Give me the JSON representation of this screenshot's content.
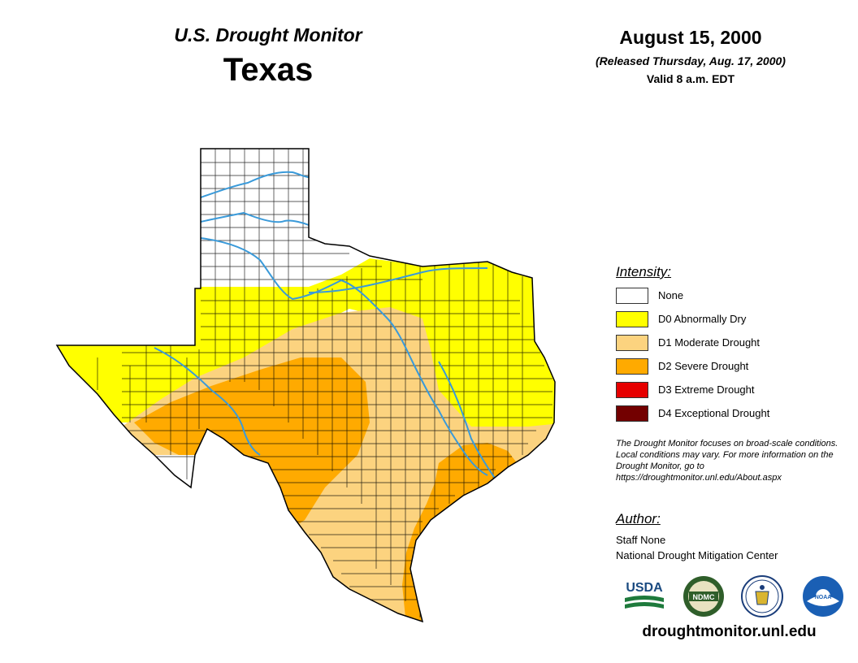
{
  "header": {
    "subtitle": "U.S. Drought Monitor",
    "region": "Texas",
    "date": "August 15, 2000",
    "released": "(Released Thursday, Aug. 17, 2000)",
    "valid": "Valid 8 a.m. EDT"
  },
  "legend": {
    "heading": "Intensity:",
    "items": [
      {
        "label": "None",
        "color": "#ffffff"
      },
      {
        "label": "D0 Abnormally Dry",
        "color": "#ffff00"
      },
      {
        "label": "D1 Moderate Drought",
        "color": "#fcd37f"
      },
      {
        "label": "D2 Severe Drought",
        "color": "#ffaa00"
      },
      {
        "label": "D3 Extreme Drought",
        "color": "#e60000"
      },
      {
        "label": "D4 Exceptional Drought",
        "color": "#730000"
      }
    ]
  },
  "note": "The Drought Monitor focuses on broad-scale conditions. Local conditions may vary. For more information on the Drought Monitor, go to https://droughtmonitor.unl.edu/About.aspx",
  "author": {
    "heading": "Author:",
    "name": "Staff None",
    "organization": "National Drought Mitigation Center"
  },
  "logos": {
    "usda": "USDA",
    "ndmc": "NDMC",
    "noaa": "NOAA"
  },
  "url": "droughtmonitor.unl.edu",
  "colors": {
    "river": "#3a9ad9",
    "county_line": "#000000"
  }
}
